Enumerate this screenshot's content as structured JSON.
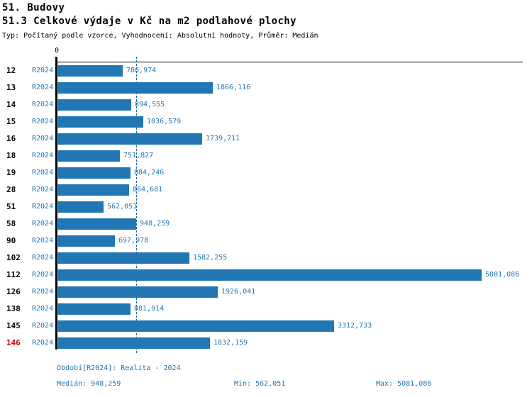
{
  "header": {
    "title": "51. Budovy",
    "subtitle": "51.3 Celkové výdaje v Kč na m2 podlahové plochy",
    "meta": "Typ: Počítaný podle vzorce, Vyhodnocení: Absolutní hodnoty, Průměr: Medián"
  },
  "chart_data": {
    "type": "bar",
    "orientation": "horizontal",
    "title": "51.3 Celkové výdaje v Kč na m2 podlahové plochy",
    "unit": "Kč na m2",
    "x_axis_zero_label": "0",
    "xlim": [
      0,
      5560
    ],
    "grid": false,
    "series_name": "R2024",
    "categories": [
      "12",
      "13",
      "14",
      "15",
      "16",
      "18",
      "19",
      "28",
      "51",
      "58",
      "90",
      "102",
      "112",
      "126",
      "138",
      "145",
      "146"
    ],
    "series": [
      {
        "name": "R2024",
        "values": [
          786.974,
          1866.116,
          894.555,
          1036.579,
          1739.711,
          751.827,
          884.246,
          864.681,
          562.051,
          948.259,
          697.978,
          1582.255,
          5081.086,
          1926.041,
          881.914,
          3312.733,
          1832.159
        ]
      }
    ],
    "value_labels": [
      "786,974",
      "1866,116",
      "894,555",
      "1036,579",
      "1739,711",
      "751,827",
      "884,246",
      "864,681",
      "562,051",
      "948,259",
      "697,978",
      "1582,255",
      "5081,086",
      "1926,041",
      "881,914",
      "3312,733",
      "1832,159"
    ],
    "median_reference": 948.259,
    "highlighted_category": "146",
    "colors": {
      "bar": "#2077b4",
      "blue_text": "#2077b4",
      "median_line": "#1c6399",
      "highlight": "#d40000",
      "axis": "#000000"
    }
  },
  "footer": {
    "period": "Období[R2024]: Realita - 2024",
    "median": "Medián: 948,259",
    "min": "Min: 562,051",
    "max": "Max: 5081,086"
  }
}
